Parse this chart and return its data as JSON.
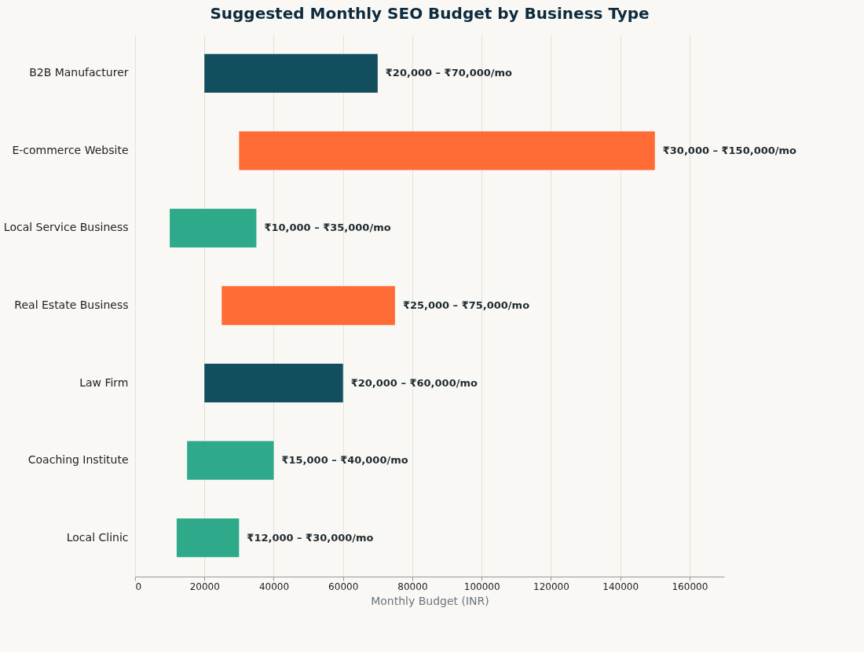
{
  "chart_data": {
    "type": "bar",
    "orientation": "horizontal",
    "title": "Suggested Monthly SEO Budget by Business Type",
    "xlabel": "Monthly Budget (INR)",
    "categories": [
      "B2B Manufacturer",
      "E-commerce Website",
      "Local Service Business",
      "Real Estate Business",
      "Law Firm",
      "Coaching Institute",
      "Local Clinic"
    ],
    "base": [
      20000,
      30000,
      10000,
      25000,
      20000,
      15000,
      12000
    ],
    "values": [
      50000,
      120000,
      25000,
      50000,
      40000,
      25000,
      18000
    ],
    "colors": [
      "#124e5e",
      "#ff6b35",
      "#2eaa8a",
      "#ff6b35",
      "#124e5e",
      "#2eaa8a",
      "#2eaa8a"
    ],
    "value_labels": [
      "₹20,000 – ₹70,000/mo",
      "₹30,000 – ₹150,000/mo",
      "₹10,000 – ₹35,000/mo",
      "₹25,000 – ₹75,000/mo",
      "₹20,000 – ₹60,000/mo",
      "₹15,000 – ₹40,000/mo",
      "₹12,000 – ₹30,000/mo"
    ],
    "xlim": [
      0,
      170000
    ],
    "xticks": [
      0,
      20000,
      40000,
      60000,
      80000,
      100000,
      120000,
      140000,
      160000
    ],
    "grid": "x"
  }
}
